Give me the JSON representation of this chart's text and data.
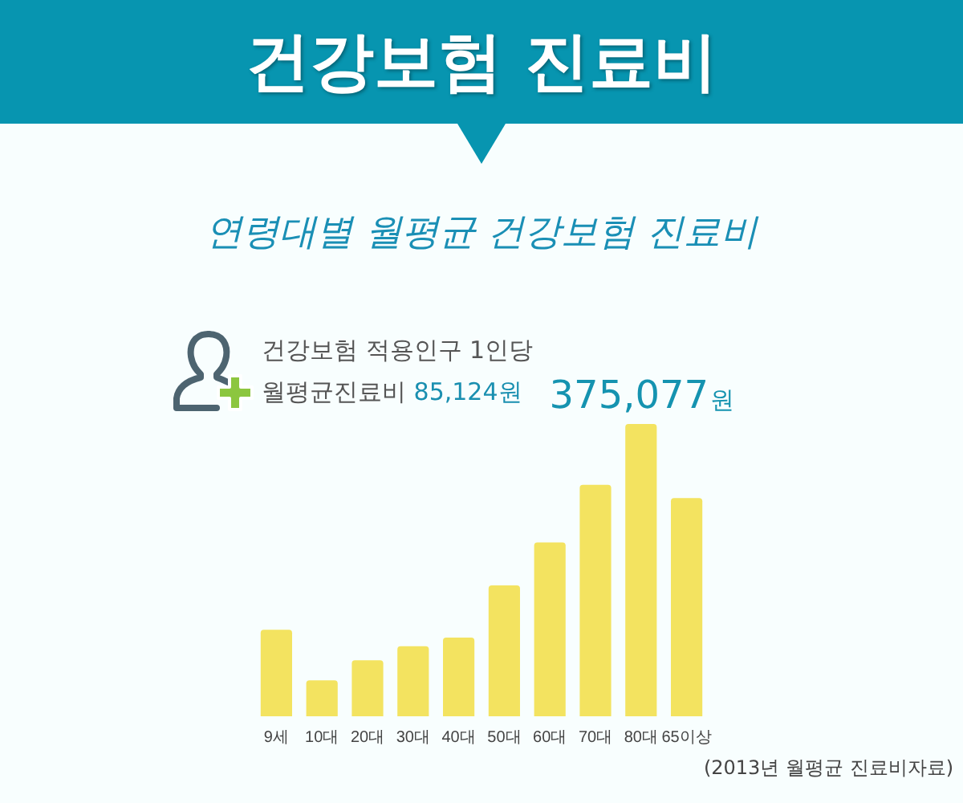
{
  "chart_data": {
    "type": "bar",
    "title": "건강보험 진료비",
    "subtitle": "연령대별 월평균 건강보험 진료비",
    "categories": [
      "9세",
      "10대",
      "20대",
      "30대",
      "40대",
      "50대",
      "60대",
      "70대",
      "80대",
      "65이상"
    ],
    "values": [
      111000,
      46000,
      72000,
      90000,
      101000,
      168000,
      223000,
      297000,
      375077,
      280000
    ],
    "value_labels": [
      null,
      null,
      null,
      null,
      null,
      null,
      null,
      null,
      "375,077원",
      null
    ],
    "color": "#f3e360",
    "tick_labels": "x",
    "annotations": [
      "건강보험 적용인구 1인당\n월평균진료비 85,124원",
      "(2013년 월평균 진료비자료)"
    ]
  }
}
